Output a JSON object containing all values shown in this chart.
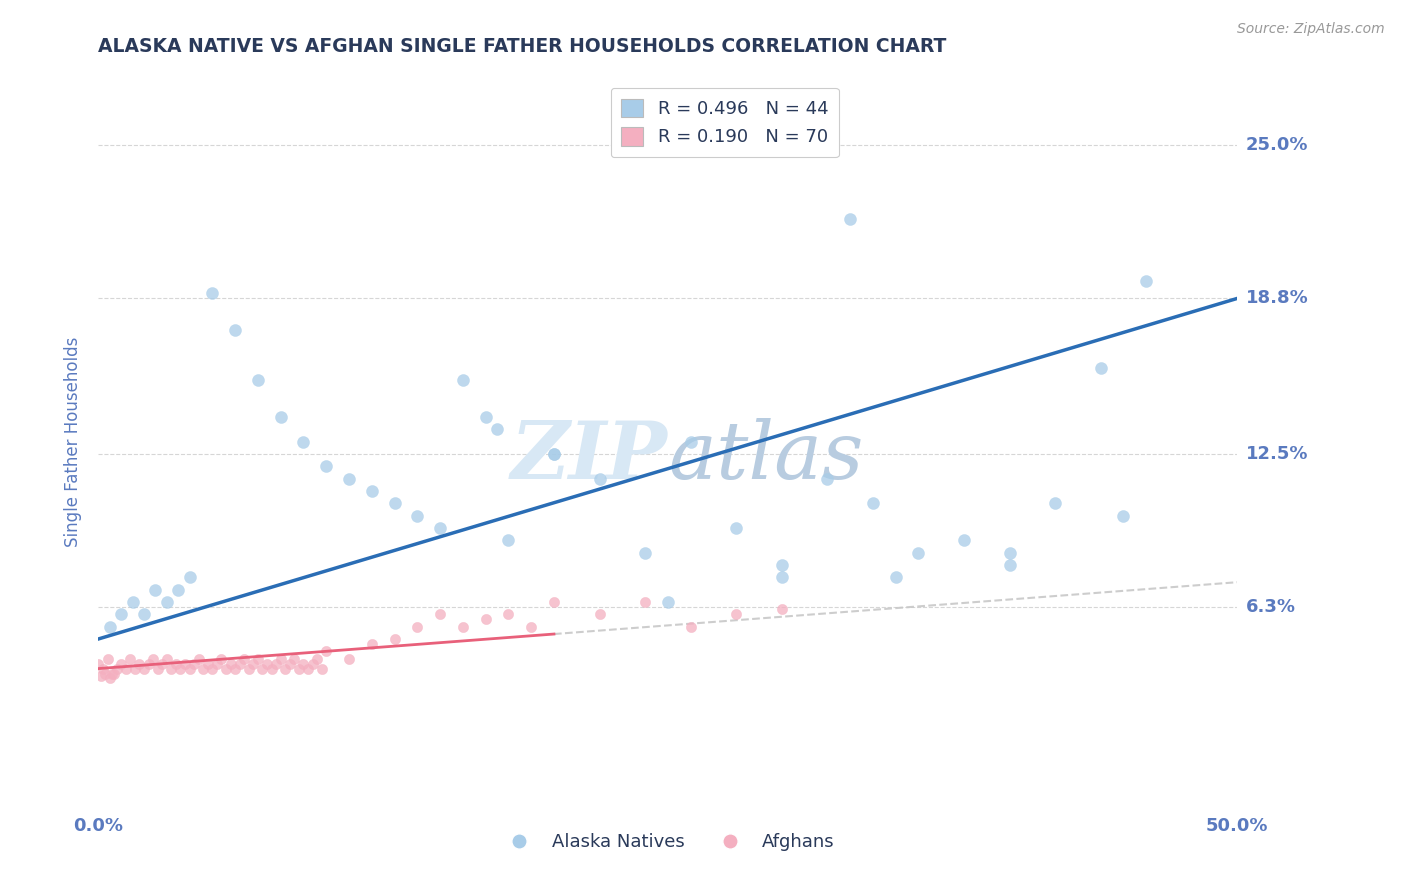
{
  "title": "ALASKA NATIVE VS AFGHAN SINGLE FATHER HOUSEHOLDS CORRELATION CHART",
  "source": "Source: ZipAtlas.com",
  "ylabel": "Single Father Households",
  "ytick_labels": [
    "25.0%",
    "18.8%",
    "12.5%",
    "6.3%"
  ],
  "ytick_values": [
    0.25,
    0.188,
    0.125,
    0.063
  ],
  "xlim": [
    0.0,
    0.5
  ],
  "ylim": [
    -0.02,
    0.28
  ],
  "legend_blue_label": "R = 0.496   N = 44",
  "legend_pink_label": "R = 0.190   N = 70",
  "legend_blue_sublabel": "Alaska Natives",
  "legend_pink_sublabel": "Afghans",
  "blue_color": "#a8cce8",
  "pink_color": "#f4afc0",
  "line_blue_color": "#2a6db5",
  "line_pink_color": "#e8607a",
  "line_dash_color": "#c8c8c8",
  "watermark_color": "#d8e8f5",
  "title_color": "#2a3a5a",
  "axis_color": "#5a7abf",
  "blue_scatter_x": [
    0.005,
    0.01,
    0.015,
    0.02,
    0.025,
    0.03,
    0.035,
    0.04,
    0.05,
    0.06,
    0.07,
    0.08,
    0.09,
    0.1,
    0.11,
    0.12,
    0.13,
    0.14,
    0.15,
    0.16,
    0.17,
    0.175,
    0.18,
    0.2,
    0.22,
    0.24,
    0.26,
    0.28,
    0.3,
    0.32,
    0.34,
    0.36,
    0.38,
    0.4,
    0.42,
    0.44,
    0.46,
    0.3,
    0.35,
    0.4,
    0.45,
    0.2,
    0.25,
    0.33
  ],
  "blue_scatter_y": [
    0.055,
    0.06,
    0.065,
    0.06,
    0.07,
    0.065,
    0.07,
    0.075,
    0.19,
    0.175,
    0.155,
    0.14,
    0.13,
    0.12,
    0.115,
    0.11,
    0.105,
    0.1,
    0.095,
    0.155,
    0.14,
    0.135,
    0.09,
    0.125,
    0.115,
    0.085,
    0.13,
    0.095,
    0.08,
    0.115,
    0.105,
    0.085,
    0.09,
    0.08,
    0.105,
    0.16,
    0.195,
    0.075,
    0.075,
    0.085,
    0.1,
    0.125,
    0.065,
    0.22
  ],
  "pink_scatter_x": [
    0.0,
    0.002,
    0.004,
    0.006,
    0.008,
    0.01,
    0.012,
    0.014,
    0.016,
    0.018,
    0.02,
    0.022,
    0.024,
    0.026,
    0.028,
    0.03,
    0.032,
    0.034,
    0.036,
    0.038,
    0.04,
    0.042,
    0.044,
    0.046,
    0.048,
    0.05,
    0.052,
    0.054,
    0.056,
    0.058,
    0.06,
    0.062,
    0.064,
    0.066,
    0.068,
    0.07,
    0.072,
    0.074,
    0.076,
    0.078,
    0.08,
    0.082,
    0.084,
    0.086,
    0.088,
    0.09,
    0.092,
    0.094,
    0.096,
    0.098,
    0.1,
    0.11,
    0.12,
    0.13,
    0.14,
    0.15,
    0.16,
    0.17,
    0.18,
    0.19,
    0.2,
    0.22,
    0.24,
    0.26,
    0.28,
    0.3,
    0.001,
    0.003,
    0.005,
    0.007
  ],
  "pink_scatter_y": [
    0.04,
    0.038,
    0.042,
    0.036,
    0.038,
    0.04,
    0.038,
    0.042,
    0.038,
    0.04,
    0.038,
    0.04,
    0.042,
    0.038,
    0.04,
    0.042,
    0.038,
    0.04,
    0.038,
    0.04,
    0.038,
    0.04,
    0.042,
    0.038,
    0.04,
    0.038,
    0.04,
    0.042,
    0.038,
    0.04,
    0.038,
    0.04,
    0.042,
    0.038,
    0.04,
    0.042,
    0.038,
    0.04,
    0.038,
    0.04,
    0.042,
    0.038,
    0.04,
    0.042,
    0.038,
    0.04,
    0.038,
    0.04,
    0.042,
    0.038,
    0.045,
    0.042,
    0.048,
    0.05,
    0.055,
    0.06,
    0.055,
    0.058,
    0.06,
    0.055,
    0.065,
    0.06,
    0.065,
    0.055,
    0.06,
    0.062,
    0.035,
    0.036,
    0.034,
    0.036
  ],
  "blue_line_x": [
    0.0,
    0.5
  ],
  "blue_line_y": [
    0.05,
    0.188
  ],
  "pink_line_x": [
    0.0,
    0.2
  ],
  "pink_line_y": [
    0.038,
    0.052
  ],
  "dash_line_x": [
    0.2,
    0.5
  ],
  "dash_line_y": [
    0.052,
    0.073
  ]
}
